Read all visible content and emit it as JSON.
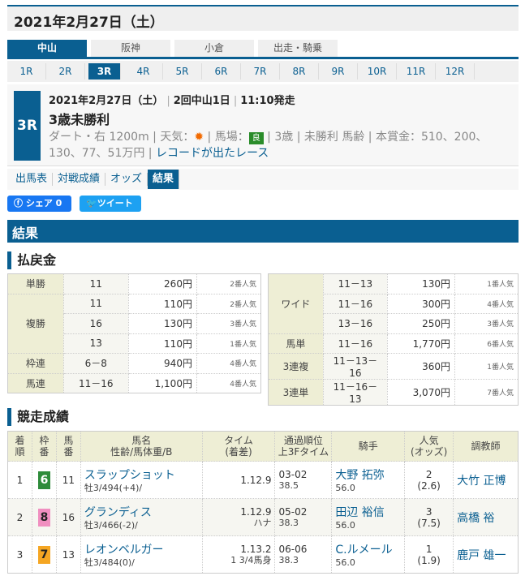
{
  "date_header": "2021年2月27日（土）",
  "venues": [
    {
      "label": "中山",
      "active": true
    },
    {
      "label": "阪神"
    },
    {
      "label": "小倉"
    },
    {
      "label": "出走・騎乗"
    }
  ],
  "races": [
    "1R",
    "2R",
    "3R",
    "4R",
    "5R",
    "6R",
    "7R",
    "8R",
    "9R",
    "10R",
    "11R",
    "12R"
  ],
  "active_race": "3R",
  "race": {
    "badge": "3R",
    "date": "2021年2月27日（土）",
    "meeting": "2回中山1日",
    "start": "11:10発走",
    "name": "3歳未勝利",
    "course": "ダート・右 1200m",
    "weather_label": "天気：",
    "weather_icon": "sun-icon",
    "track_label": "馬場：",
    "track": "良",
    "track_color": "#2a8c2a",
    "age": "3歳",
    "cls": "未勝利 馬齢",
    "prize": "本賞金：510、200、130、77、51万円",
    "record_link": "レコードが出たレース"
  },
  "links": [
    "出馬表",
    "対戦成績",
    "オッズ",
    "結果"
  ],
  "share": {
    "fb": "シェア 0",
    "tw": "ツイート"
  },
  "section_title": "結果",
  "payout_title": "払戻金",
  "payout_left": [
    {
      "type": "単勝",
      "rows": [
        [
          "11",
          "260円",
          "2番人気"
        ]
      ]
    },
    {
      "type": "複勝",
      "rows": [
        [
          "11",
          "110円",
          "2番人気"
        ],
        [
          "16",
          "130円",
          "3番人気"
        ],
        [
          "13",
          "110円",
          "1番人気"
        ]
      ]
    },
    {
      "type": "枠連",
      "rows": [
        [
          "6－8",
          "940円",
          "4番人気"
        ]
      ]
    },
    {
      "type": "馬連",
      "rows": [
        [
          "11－16",
          "1,100円",
          "4番人気"
        ]
      ]
    }
  ],
  "payout_right": [
    {
      "type": "ワイド",
      "rows": [
        [
          "11－13",
          "130円",
          "1番人気"
        ],
        [
          "11－16",
          "300円",
          "4番人気"
        ],
        [
          "13－16",
          "250円",
          "3番人気"
        ]
      ]
    },
    {
      "type": "馬単",
      "rows": [
        [
          "11－16",
          "1,770円",
          "6番人気"
        ]
      ]
    },
    {
      "type": "3連複",
      "rows": [
        [
          "11－13－16",
          "360円",
          "1番人気"
        ]
      ]
    },
    {
      "type": "3連単",
      "rows": [
        [
          "11－16－13",
          "3,070円",
          "7番人気"
        ]
      ]
    }
  ],
  "results_title": "競走成績",
  "results_headers": [
    [
      "着",
      "順"
    ],
    [
      "枠",
      "番"
    ],
    [
      "馬",
      "番"
    ],
    [
      "馬名",
      "性齢/馬体重/B"
    ],
    [
      "タイム",
      "(着差)"
    ],
    [
      "通過順位",
      "上3Fタイム"
    ],
    [
      "騎手",
      ""
    ],
    [
      "人気",
      "(オッズ)"
    ],
    [
      "調教師",
      ""
    ]
  ],
  "results": [
    {
      "pos": "1",
      "waku": "6",
      "waku_color": "#2e8b3a",
      "num": "11",
      "horse": "スラップショット",
      "info": "牡3/494(+4)/",
      "time": "1.12.9",
      "margin": "",
      "pass": "03-02",
      "f3": "38.5",
      "jockey": "大野 拓弥",
      "weight": "56.0",
      "pop": "2",
      "odds": "(2.6)",
      "trainer": "大竹 正博"
    },
    {
      "pos": "2",
      "waku": "8",
      "waku_color": "#f08fc0",
      "num": "16",
      "horse": "グランディス",
      "info": "牡3/466(-2)/",
      "time": "1.12.9",
      "margin": "ハナ",
      "pass": "05-02",
      "f3": "38.3",
      "jockey": "田辺 裕信",
      "weight": "56.0",
      "pop": "3",
      "odds": "(7.5)",
      "trainer": "高橋 裕"
    },
    {
      "pos": "3",
      "waku": "7",
      "waku_color": "#f5a623",
      "num": "13",
      "horse": "レオンベルガー",
      "info": "牡3/484(0)/",
      "time": "1.13.2",
      "margin": "1 3/4馬身",
      "pass": "06-06",
      "f3": "38.3",
      "jockey": "C.ルメール",
      "weight": "56.0",
      "pop": "1",
      "odds": "(1.9)",
      "trainer": "鹿戸 雄一"
    }
  ]
}
